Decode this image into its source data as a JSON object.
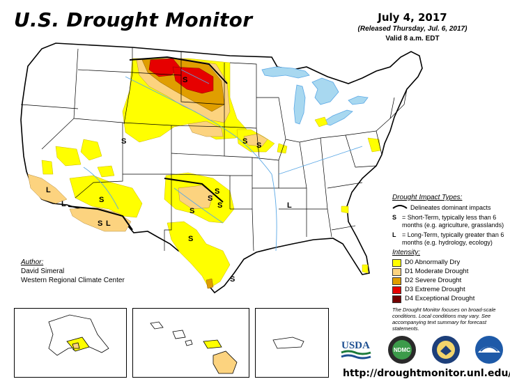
{
  "title": "U.S. Drought Monitor",
  "date": "July 4, 2017",
  "released": "(Released Thursday, Jul. 6, 2017)",
  "valid": "Valid 8 a.m. EDT",
  "impacts": {
    "header": "Drought Impact Types:",
    "delineates": "Delineates dominant impacts",
    "s_key": "S",
    "s_text": "= Short-Term, typically less than 6 months (e.g. agriculture, grasslands)",
    "l_key": "L",
    "l_text": "= Long-Term, typically greater than 6 months (e.g. hydrology, ecology)"
  },
  "intensity": {
    "header": "Intensity:",
    "levels": [
      {
        "label": "D0 Abnormally Dry",
        "color": "#ffff00"
      },
      {
        "label": "D1 Moderate Drought",
        "color": "#fcd37f"
      },
      {
        "label": "D2 Severe Drought",
        "color": "#e09e00"
      },
      {
        "label": "D3 Extreme Drought",
        "color": "#e60000"
      },
      {
        "label": "D4 Exceptional Drought",
        "color": "#730000"
      }
    ]
  },
  "author": {
    "header": "Author:",
    "name": "David Simeral",
    "org": "Western Regional Climate Center"
  },
  "note": "The Drought Monitor focuses on broad-scale conditions. Local conditions may vary. See accompanying text summary for forecast statements.",
  "url": "http://droughtmonitor.unl.edu/",
  "logos": {
    "usda": "USDA",
    "ndmc": "NDMC",
    "commerce": "DOC",
    "noaa": "NOAA"
  },
  "map_labels": [
    "S",
    "S",
    "S",
    "S",
    "S",
    "S",
    "S",
    "S",
    "S",
    "S",
    "S",
    "S",
    "L",
    "L",
    "L",
    "S",
    "S"
  ],
  "colors": {
    "water": "#a8d8f0",
    "state_line": "#000000",
    "county_line": "#cfcfcf",
    "river": "#5aa8e6"
  }
}
